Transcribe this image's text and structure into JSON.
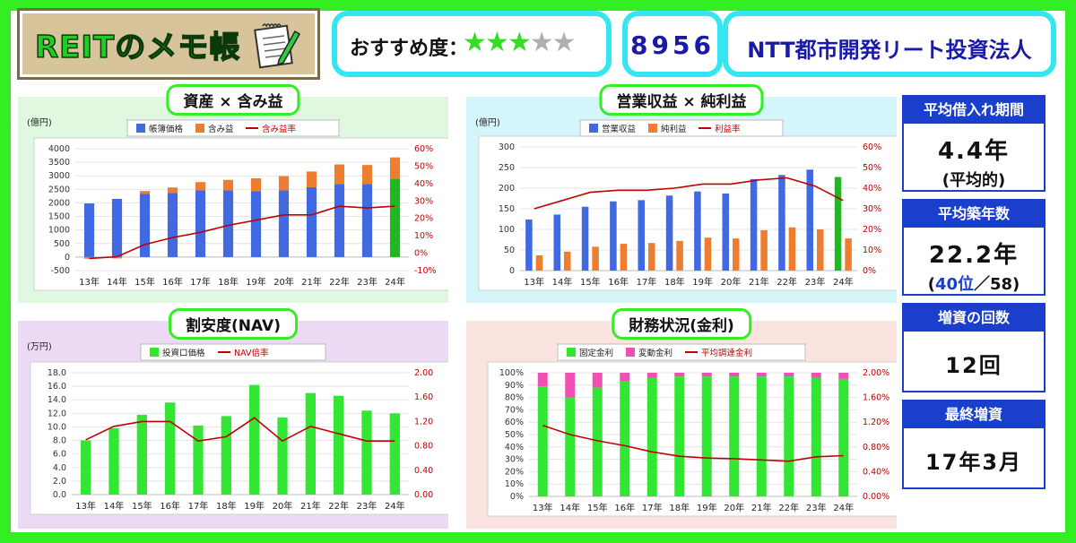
{
  "header": {
    "logo_text": "REITのメモ帳",
    "rating_label": "おすすめ度：",
    "rating_stars": 3,
    "rating_max": 5,
    "code": "8956",
    "name": "NTT都市開発リート投資法人"
  },
  "side": {
    "borrow_title": "平均借入れ期間",
    "borrow_value": "4.4年",
    "borrow_note": "(平均的)",
    "age_title": "平均築年数",
    "age_value": "22.2年",
    "age_rank_open": "(",
    "age_rank": "40位",
    "age_rank_rest": "／58)",
    "increase_title": "増資の回数",
    "increase_value": "12回",
    "last_title": "最終増資",
    "last_value": "17年3月"
  },
  "chart_data": [
    {
      "type": "bar",
      "title": "資産 × 含み益",
      "unit_label": "(億円)",
      "categories": [
        "13年",
        "14年",
        "15年",
        "16年",
        "17年",
        "18年",
        "19年",
        "20年",
        "21年",
        "22年",
        "23年",
        "24年"
      ],
      "series": [
        {
          "name": "帳簿価格",
          "kind": "bar",
          "values": [
            1980,
            2150,
            2330,
            2370,
            2470,
            2460,
            2440,
            2460,
            2580,
            2700,
            2700,
            2900
          ],
          "color": "#4169e1"
        },
        {
          "name": "含み益",
          "kind": "bar-stacked",
          "values": [
            -60,
            -50,
            110,
            200,
            300,
            390,
            470,
            530,
            580,
            720,
            700,
            780
          ],
          "color": "#ed7d31"
        },
        {
          "name": "含み益率",
          "kind": "line",
          "axis": "right",
          "values": [
            -3,
            -2,
            5,
            9,
            12,
            16,
            19,
            22,
            22,
            27,
            26,
            27
          ],
          "color": "#c00000"
        }
      ],
      "highlight_last_color": "#1fb81f",
      "ylim_left": [
        -500,
        4000
      ],
      "yticks_left": [
        "-500",
        "0",
        "500",
        "1000",
        "1500",
        "2000",
        "2500",
        "3000",
        "3500",
        "4000"
      ],
      "ylim_right": [
        -10,
        60
      ],
      "yticks_right": [
        "-10%",
        "0%",
        "10%",
        "20%",
        "30%",
        "40%",
        "50%",
        "60%"
      ]
    },
    {
      "type": "bar",
      "title": "営業収益 × 純利益",
      "unit_label": "(億円)",
      "categories": [
        "13年",
        "14年",
        "15年",
        "16年",
        "17年",
        "18年",
        "19年",
        "20年",
        "21年",
        "22年",
        "23年",
        "24年"
      ],
      "series": [
        {
          "name": "営業収益",
          "kind": "bar",
          "values": [
            124,
            136,
            155,
            168,
            171,
            182,
            192,
            187,
            222,
            232,
            245,
            227
          ],
          "color": "#4169e1"
        },
        {
          "name": "純利益",
          "kind": "bar-side",
          "values": [
            37,
            46,
            58,
            65,
            67,
            72,
            80,
            78,
            98,
            105,
            100,
            78
          ],
          "color": "#ed7d31"
        },
        {
          "name": "利益率",
          "kind": "line",
          "axis": "right",
          "values": [
            30,
            34,
            38,
            39,
            39,
            40,
            42,
            42,
            44,
            45,
            41,
            34
          ],
          "color": "#c00000"
        }
      ],
      "highlight_last_color": "#1fb81f",
      "ylim_left": [
        0,
        300
      ],
      "yticks_left": [
        "0",
        "50",
        "100",
        "150",
        "200",
        "250",
        "300"
      ],
      "ylim_right": [
        0,
        60
      ],
      "yticks_right": [
        "0%",
        "10%",
        "20%",
        "30%",
        "40%",
        "50%",
        "60%"
      ]
    },
    {
      "type": "bar",
      "title": "割安度(NAV)",
      "unit_label": "(万円)",
      "categories": [
        "13年",
        "14年",
        "15年",
        "16年",
        "17年",
        "18年",
        "19年",
        "20年",
        "21年",
        "22年",
        "23年",
        "24年"
      ],
      "series": [
        {
          "name": "投資口価格",
          "kind": "bar",
          "values": [
            8.0,
            9.8,
            11.8,
            13.6,
            10.2,
            11.6,
            16.2,
            11.4,
            15.0,
            14.6,
            12.4,
            12.0
          ],
          "color": "#33e633"
        },
        {
          "name": "NAV倍率",
          "kind": "line",
          "axis": "right",
          "values": [
            0.9,
            1.12,
            1.2,
            1.2,
            0.88,
            0.95,
            1.26,
            0.88,
            1.12,
            1.0,
            0.88,
            0.88
          ],
          "color": "#c00000"
        }
      ],
      "ylim_left": [
        0,
        18
      ],
      "yticks_left": [
        "0.0",
        "2.0",
        "4.0",
        "6.0",
        "8.0",
        "10.0",
        "12.0",
        "14.0",
        "16.0",
        "18.0"
      ],
      "ylim_right": [
        0,
        2
      ],
      "yticks_right": [
        "0.00",
        "0.40",
        "0.80",
        "1.20",
        "1.60",
        "2.00"
      ]
    },
    {
      "type": "bar",
      "title": "財務状況(金利)",
      "unit_label": "",
      "categories": [
        "13年",
        "14年",
        "15年",
        "16年",
        "17年",
        "18年",
        "19年",
        "20年",
        "21年",
        "22年",
        "23年",
        "24年"
      ],
      "series": [
        {
          "name": "固定金利",
          "kind": "bar",
          "values": [
            89,
            80,
            88,
            93,
            96,
            97,
            97,
            97,
            97,
            97,
            96,
            95
          ],
          "color": "#33e633"
        },
        {
          "name": "変動金利",
          "kind": "bar-stacked",
          "values": [
            11,
            20,
            12,
            7,
            4,
            3,
            3,
            3,
            3,
            3,
            4,
            5
          ],
          "color": "#f050b4"
        },
        {
          "name": "平均調達金利",
          "kind": "line",
          "axis": "right",
          "values": [
            1.15,
            1.0,
            0.9,
            0.82,
            0.72,
            0.65,
            0.62,
            0.61,
            0.59,
            0.57,
            0.64,
            0.66
          ],
          "color": "#c00000"
        }
      ],
      "ylim_left": [
        0,
        100
      ],
      "yticks_left": [
        "0%",
        "10%",
        "20%",
        "30%",
        "40%",
        "50%",
        "60%",
        "70%",
        "80%",
        "90%",
        "100%"
      ],
      "ylim_right": [
        0,
        2
      ],
      "yticks_right": [
        "0.00%",
        "0.40%",
        "0.80%",
        "1.20%",
        "1.60%",
        "2.00%"
      ]
    }
  ]
}
